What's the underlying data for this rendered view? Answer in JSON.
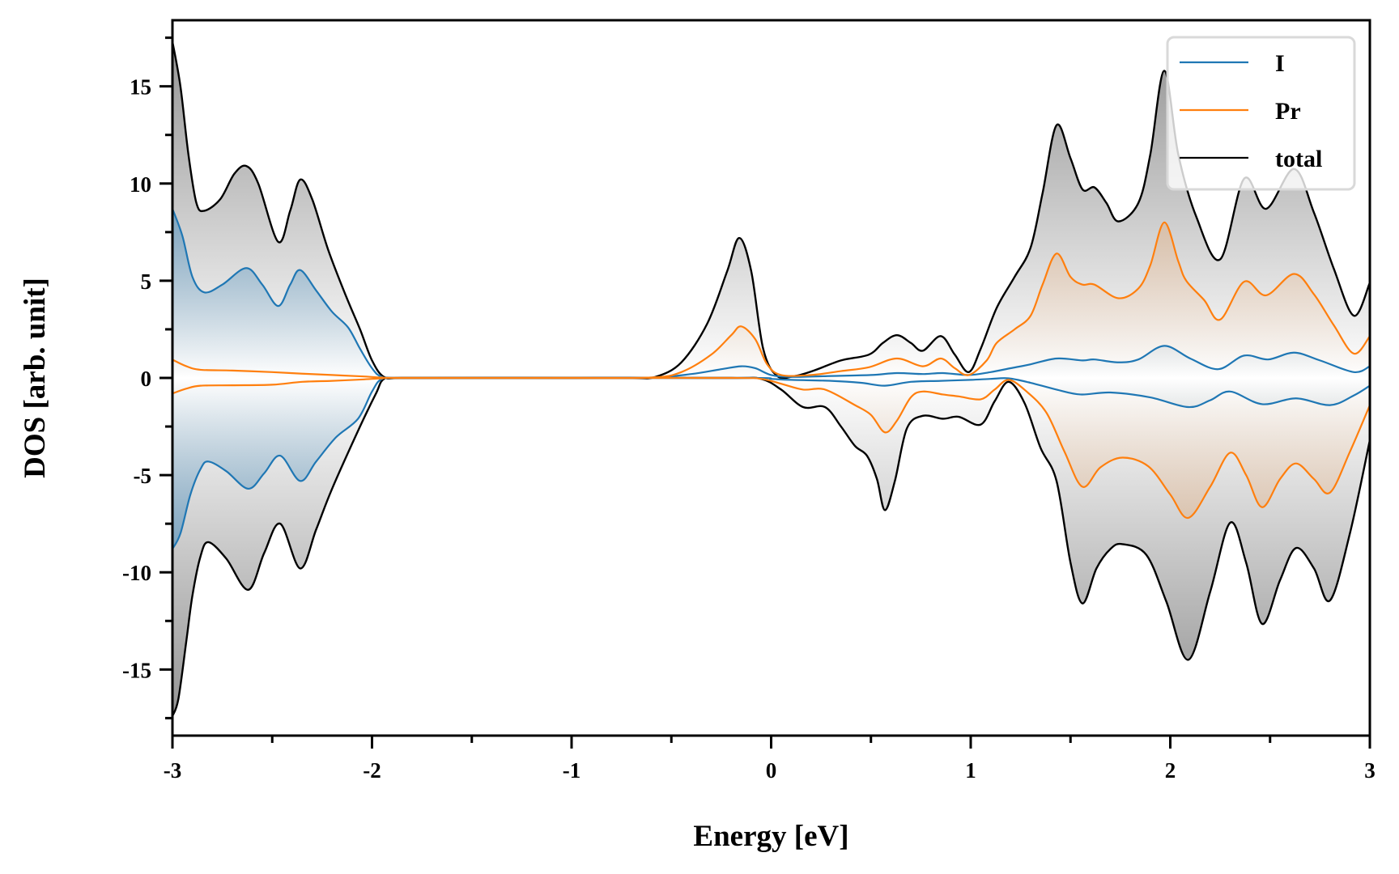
{
  "chart_data": {
    "type": "line",
    "title": "",
    "xlabel": "Energy [eV]",
    "ylabel": "DOS [arb. unit]",
    "xlim": [
      -3,
      3
    ],
    "ylim": [
      -18.4,
      18.4
    ],
    "xticks": [
      -3,
      -2,
      -1,
      0,
      1,
      2,
      3
    ],
    "xtick_labels": [
      "-3",
      "-2",
      "-1",
      "0",
      "1",
      "2",
      "3"
    ],
    "xminor_step": 0.5,
    "yticks": [
      -15,
      -10,
      -5,
      0,
      5,
      10,
      15
    ],
    "ytick_labels": [
      "-15",
      "-10",
      "-5",
      "0",
      "5",
      "10",
      "15"
    ],
    "yminor_step": 2.5,
    "grid": false,
    "legend_position": "top-right",
    "colors": {
      "I": "#1f77b4",
      "Pr": "#ff7f0e",
      "total": "#000000",
      "total_fill": "#8c8c8c"
    },
    "series": [
      {
        "name": "total",
        "spin_up": {
          "x": [
            -3.0,
            -2.96,
            -2.92,
            -2.88,
            -2.84,
            -2.76,
            -2.69,
            -2.63,
            -2.57,
            -2.47,
            -2.41,
            -2.36,
            -2.3,
            -2.22,
            -2.13,
            -2.06,
            -2.0,
            -1.94,
            -1.85,
            -1.5,
            -1.0,
            -0.7,
            -0.58,
            -0.45,
            -0.32,
            -0.22,
            -0.16,
            -0.1,
            -0.04,
            0.03,
            0.12,
            0.22,
            0.35,
            0.49,
            0.56,
            0.63,
            0.7,
            0.76,
            0.85,
            0.92,
            0.99,
            1.05,
            1.13,
            1.22,
            1.3,
            1.36,
            1.43,
            1.5,
            1.56,
            1.62,
            1.68,
            1.74,
            1.84,
            1.9,
            1.97,
            2.04,
            2.13,
            2.25,
            2.37,
            2.48,
            2.62,
            2.72,
            2.82,
            2.92,
            3.0
          ],
          "y": [
            17.3,
            15.0,
            11.5,
            9.0,
            8.6,
            9.2,
            10.5,
            10.9,
            10.0,
            7.0,
            8.6,
            10.2,
            9.2,
            6.6,
            4.2,
            2.5,
            0.9,
            0.05,
            0.0,
            0.0,
            0.0,
            0.0,
            0.05,
            0.8,
            2.8,
            5.5,
            7.2,
            5.5,
            1.5,
            0.1,
            0.1,
            0.4,
            0.9,
            1.2,
            1.8,
            2.2,
            1.8,
            1.4,
            2.15,
            1.2,
            0.3,
            1.5,
            3.6,
            5.2,
            6.7,
            9.5,
            13.0,
            11.3,
            9.7,
            9.8,
            9.0,
            8.05,
            9.0,
            11.5,
            15.8,
            11.5,
            8.3,
            6.1,
            10.25,
            8.7,
            10.75,
            8.5,
            5.6,
            3.2,
            4.9
          ]
        },
        "spin_down": {
          "x": [
            -3.0,
            -2.97,
            -2.93,
            -2.9,
            -2.86,
            -2.82,
            -2.73,
            -2.62,
            -2.54,
            -2.46,
            -2.36,
            -2.28,
            -2.2,
            -2.06,
            -1.98,
            -1.94,
            -1.85,
            -1.0,
            -0.2,
            -0.05,
            0.05,
            0.16,
            0.27,
            0.35,
            0.42,
            0.48,
            0.53,
            0.57,
            0.62,
            0.68,
            0.76,
            0.86,
            0.94,
            1.05,
            1.12,
            1.19,
            1.27,
            1.35,
            1.43,
            1.5,
            1.56,
            1.63,
            1.7,
            1.76,
            1.88,
            1.98,
            2.09,
            2.2,
            2.3,
            2.38,
            2.46,
            2.55,
            2.63,
            2.72,
            2.8,
            2.9,
            3.0
          ],
          "y": [
            -17.4,
            -16.5,
            -13.5,
            -11.2,
            -9.2,
            -8.45,
            -9.3,
            -10.9,
            -9.0,
            -7.5,
            -9.8,
            -7.8,
            -5.7,
            -2.5,
            -0.8,
            -0.05,
            0.0,
            0.0,
            0.0,
            -0.05,
            -0.6,
            -1.5,
            -1.5,
            -2.5,
            -3.5,
            -4.0,
            -5.2,
            -6.8,
            -5.3,
            -2.6,
            -1.95,
            -2.1,
            -2.0,
            -2.4,
            -1.2,
            -0.2,
            -1.3,
            -3.6,
            -5.3,
            -9.5,
            -11.6,
            -9.8,
            -8.8,
            -8.55,
            -9.1,
            -11.5,
            -14.5,
            -11.0,
            -7.45,
            -9.5,
            -12.65,
            -10.4,
            -8.75,
            -9.8,
            -11.45,
            -8.0,
            -3.2
          ]
        }
      },
      {
        "name": "I",
        "spin_up": {
          "x": [
            -3.0,
            -2.95,
            -2.9,
            -2.84,
            -2.75,
            -2.63,
            -2.55,
            -2.47,
            -2.41,
            -2.36,
            -2.28,
            -2.2,
            -2.12,
            -2.06,
            -2.0,
            -1.95,
            -1.85,
            -1.0,
            -0.6,
            -0.4,
            -0.25,
            -0.15,
            -0.08,
            0.0,
            0.1,
            0.3,
            0.5,
            0.63,
            0.76,
            0.86,
            0.99,
            1.1,
            1.2,
            1.3,
            1.43,
            1.56,
            1.62,
            1.74,
            1.84,
            1.97,
            2.1,
            2.24,
            2.37,
            2.49,
            2.62,
            2.75,
            2.92,
            3.0
          ],
          "y": [
            8.7,
            7.3,
            5.2,
            4.4,
            4.8,
            5.65,
            4.8,
            3.7,
            4.8,
            5.55,
            4.5,
            3.4,
            2.6,
            1.5,
            0.5,
            0.05,
            0.0,
            0.0,
            0.02,
            0.2,
            0.45,
            0.6,
            0.5,
            0.15,
            0.05,
            0.1,
            0.15,
            0.25,
            0.2,
            0.25,
            0.15,
            0.3,
            0.5,
            0.7,
            1.0,
            0.9,
            0.95,
            0.8,
            0.95,
            1.65,
            1.0,
            0.45,
            1.15,
            0.95,
            1.3,
            0.9,
            0.3,
            0.6
          ]
        },
        "spin_down": {
          "x": [
            -3.0,
            -2.96,
            -2.91,
            -2.86,
            -2.82,
            -2.73,
            -2.62,
            -2.54,
            -2.46,
            -2.36,
            -2.28,
            -2.18,
            -2.07,
            -2.0,
            -1.95,
            -1.85,
            -1.0,
            -0.1,
            0.0,
            0.1,
            0.3,
            0.45,
            0.57,
            0.7,
            0.85,
            1.0,
            1.1,
            1.19,
            1.3,
            1.43,
            1.55,
            1.7,
            1.9,
            2.09,
            2.2,
            2.3,
            2.46,
            2.63,
            2.8,
            2.92,
            3.0
          ],
          "y": [
            -8.8,
            -8.0,
            -6.0,
            -4.7,
            -4.3,
            -4.8,
            -5.7,
            -4.9,
            -4.0,
            -5.3,
            -4.3,
            -3.05,
            -2.1,
            -0.7,
            -0.05,
            0.0,
            0.0,
            0.0,
            -0.05,
            -0.1,
            -0.15,
            -0.25,
            -0.4,
            -0.2,
            -0.15,
            -0.1,
            -0.05,
            -0.02,
            -0.25,
            -0.6,
            -0.85,
            -0.75,
            -1.0,
            -1.5,
            -1.15,
            -0.7,
            -1.35,
            -1.05,
            -1.4,
            -0.9,
            -0.4
          ]
        }
      },
      {
        "name": "Pr",
        "spin_up": {
          "x": [
            -3.0,
            -2.93,
            -2.86,
            -2.7,
            -2.5,
            -2.35,
            -2.2,
            -2.05,
            -1.95,
            -1.85,
            -1.0,
            -0.6,
            -0.45,
            -0.3,
            -0.2,
            -0.15,
            -0.08,
            -0.02,
            0.05,
            0.2,
            0.35,
            0.49,
            0.63,
            0.76,
            0.85,
            0.92,
            0.99,
            1.08,
            1.13,
            1.22,
            1.3,
            1.36,
            1.43,
            1.5,
            1.56,
            1.62,
            1.74,
            1.84,
            1.9,
            1.97,
            2.04,
            2.08,
            2.17,
            2.25,
            2.37,
            2.48,
            2.62,
            2.72,
            2.82,
            2.92,
            3.0
          ],
          "y": [
            0.94,
            0.6,
            0.42,
            0.38,
            0.3,
            0.22,
            0.15,
            0.08,
            0.02,
            0.0,
            0.0,
            0.02,
            0.3,
            1.2,
            2.2,
            2.65,
            2.0,
            0.7,
            0.15,
            0.15,
            0.35,
            0.55,
            1.0,
            0.6,
            1.0,
            0.5,
            0.15,
            0.9,
            1.8,
            2.5,
            3.2,
            4.8,
            6.4,
            5.2,
            4.8,
            4.8,
            4.1,
            4.6,
            5.8,
            8.0,
            6.0,
            5.0,
            4.0,
            3.0,
            4.95,
            4.25,
            5.35,
            4.3,
            2.7,
            1.25,
            2.15
          ]
        },
        "spin_down": {
          "x": [
            -3.0,
            -2.93,
            -2.86,
            -2.7,
            -2.5,
            -2.35,
            -2.2,
            -2.05,
            -1.95,
            -1.85,
            -1.0,
            -0.2,
            -0.05,
            0.05,
            0.16,
            0.27,
            0.42,
            0.5,
            0.57,
            0.63,
            0.7,
            0.76,
            0.86,
            0.94,
            1.05,
            1.12,
            1.19,
            1.28,
            1.38,
            1.47,
            1.56,
            1.65,
            1.76,
            1.89,
            2.0,
            2.09,
            2.2,
            2.3,
            2.38,
            2.46,
            2.55,
            2.63,
            2.72,
            2.8,
            2.9,
            3.0
          ],
          "y": [
            -0.8,
            -0.55,
            -0.4,
            -0.38,
            -0.35,
            -0.2,
            -0.15,
            -0.08,
            -0.02,
            0.0,
            0.0,
            0.0,
            -0.05,
            -0.3,
            -0.6,
            -0.6,
            -1.4,
            -1.9,
            -2.8,
            -2.2,
            -1.0,
            -0.7,
            -0.85,
            -0.95,
            -1.1,
            -0.6,
            -0.1,
            -0.7,
            -1.8,
            -3.8,
            -5.6,
            -4.6,
            -4.1,
            -4.55,
            -6.0,
            -7.2,
            -5.6,
            -3.85,
            -5.0,
            -6.65,
            -5.2,
            -4.4,
            -5.2,
            -5.9,
            -3.8,
            -1.4
          ]
        }
      }
    ]
  },
  "legend": {
    "items": [
      {
        "label": "I",
        "series": "I"
      },
      {
        "label": "Pr",
        "series": "Pr"
      },
      {
        "label": "total",
        "series": "total"
      }
    ]
  }
}
